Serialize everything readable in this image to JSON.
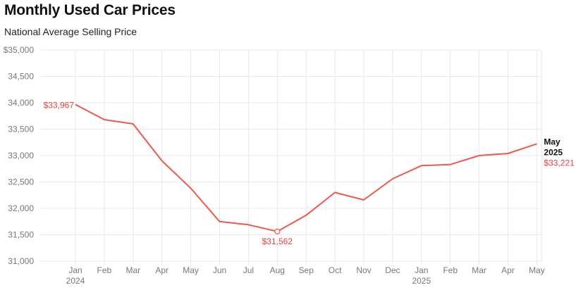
{
  "header": {
    "title": "Monthly Used Car Prices",
    "subtitle": "National Average Selling Price"
  },
  "colors": {
    "line": "#f0584a",
    "label": "#e8413a",
    "grid": "#e9e7ee",
    "tick": "#777777"
  },
  "chart_data": {
    "type": "line",
    "title": "Monthly Used Car Prices",
    "subtitle": "National Average Selling Price",
    "x": [
      "Jan 2024",
      "Feb 2024",
      "Mar 2024",
      "Apr 2024",
      "May 2024",
      "Jun 2024",
      "Jul 2024",
      "Aug 2024",
      "Sep 2024",
      "Oct 2024",
      "Nov 2024",
      "Dec 2024",
      "Jan 2025",
      "Feb 2025",
      "Mar 2025",
      "Apr 2025",
      "May 2025"
    ],
    "x_tick_labels": [
      "Jan",
      "Feb",
      "Mar",
      "Apr",
      "May",
      "Jun",
      "Jul",
      "Aug",
      "Sep",
      "Oct",
      "Nov",
      "Dec",
      "Jan",
      "Feb",
      "Mar",
      "Apr",
      "May"
    ],
    "x_year_labels": [
      {
        "index": 0,
        "label": "2024"
      },
      {
        "index": 12,
        "label": "2025"
      }
    ],
    "series": [
      {
        "values": [
          33967,
          33680,
          33600,
          32900,
          32380,
          31750,
          31690,
          31562,
          31870,
          32300,
          32160,
          32560,
          32810,
          32830,
          33000,
          33040,
          33221
        ]
      }
    ],
    "ylim": [
      31000,
      35000
    ],
    "y_ticks": [
      31000,
      31500,
      32000,
      32500,
      33000,
      33500,
      34000,
      34500,
      35000
    ],
    "y_tick_labels": [
      "31,000",
      "31,500",
      "32,000",
      "32,500",
      "33,000",
      "33,500",
      "34,000",
      "34,500",
      "$35,000"
    ],
    "grid": true,
    "annotations": [
      {
        "index": 0,
        "text": "$33,967",
        "position": "left"
      },
      {
        "index": 7,
        "text": "$31,562",
        "position": "below",
        "marker": true
      },
      {
        "index": 16,
        "text": "$33,221",
        "title": "May",
        "subtitle": "2025",
        "position": "right"
      }
    ]
  }
}
